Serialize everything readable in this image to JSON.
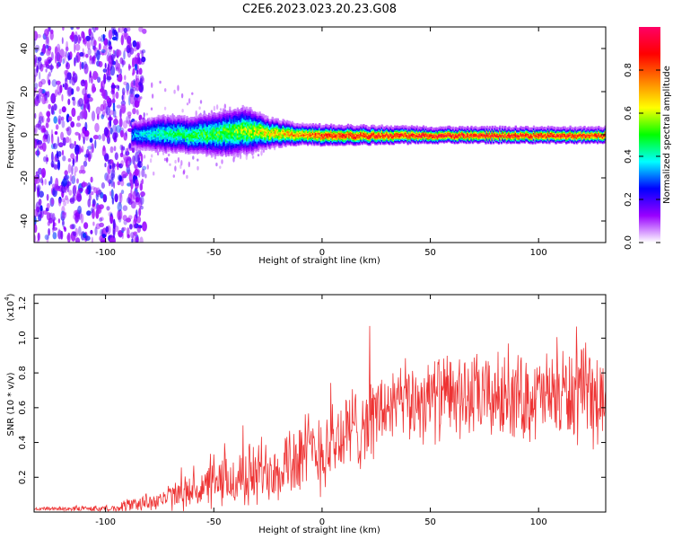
{
  "title": "C2E6.2023.023.20.23.G08",
  "chart_data": [
    {
      "type": "heatmap",
      "xlabel": "Height of straight line (km)",
      "ylabel": "Frequency (Hz)",
      "xlim": [
        -133,
        131
      ],
      "ylim": [
        -50,
        50
      ],
      "xticks": [
        -100,
        -50,
        0,
        50,
        100
      ],
      "yticks": [
        -40,
        -20,
        0,
        20,
        40
      ],
      "colorbar": {
        "label": "Normalized spectral amplitude",
        "range": [
          0,
          1
        ],
        "ticks": [
          "0.0",
          "0.2",
          "0.4",
          "0.6",
          "0.8"
        ],
        "colors": [
          "#ffffff",
          "#9900ff",
          "#0000ff",
          "#00ffff",
          "#00ff00",
          "#ffff00",
          "#ff8000",
          "#ff0000",
          "#ff0066"
        ]
      },
      "ridge": [
        {
          "x": -88,
          "f": 0.0,
          "width": 3,
          "amp": 0.35
        },
        {
          "x": -75,
          "f": 0.5,
          "width": 4,
          "amp": 0.45
        },
        {
          "x": -60,
          "f": 0.0,
          "width": 4,
          "amp": 0.5
        },
        {
          "x": -45,
          "f": 1.0,
          "width": 5,
          "amp": 0.55
        },
        {
          "x": -35,
          "f": 2.0,
          "width": 5,
          "amp": 0.6
        },
        {
          "x": -25,
          "f": 1.0,
          "width": 3,
          "amp": 0.7
        },
        {
          "x": -10,
          "f": 0.5,
          "width": 2,
          "amp": 0.8
        },
        {
          "x": 0,
          "f": 0.0,
          "width": 2,
          "amp": 0.9
        },
        {
          "x": 50,
          "f": 0.0,
          "width": 1.5,
          "amp": 0.95
        },
        {
          "x": 100,
          "f": 0.0,
          "width": 1.5,
          "amp": 0.95
        },
        {
          "x": 131,
          "f": 0.0,
          "width": 1.5,
          "amp": 0.9
        }
      ],
      "noise_region_x": [
        -133,
        -90
      ]
    },
    {
      "type": "line",
      "xlabel": "Height of straight line (km)",
      "ylabel": "SNR (10 * v/v)",
      "y_multiplier_label": "(x10",
      "y_multiplier_exp": "4",
      "y_multiplier_close": ")",
      "xlim": [
        -133,
        131
      ],
      "ylim": [
        0,
        1.25
      ],
      "xticks": [
        -100,
        -50,
        0,
        50,
        100
      ],
      "yticks": [
        "0.2",
        "0.4",
        "0.6",
        "0.8",
        "1.0",
        "1.2"
      ],
      "color": "#ee3333",
      "envelope": [
        {
          "x": -133,
          "base": 0.02,
          "amp": 0.01
        },
        {
          "x": -95,
          "base": 0.02,
          "amp": 0.02
        },
        {
          "x": -90,
          "base": 0.04,
          "amp": 0.04
        },
        {
          "x": -75,
          "base": 0.07,
          "amp": 0.06
        },
        {
          "x": -60,
          "base": 0.12,
          "amp": 0.1
        },
        {
          "x": -45,
          "base": 0.17,
          "amp": 0.15
        },
        {
          "x": -30,
          "base": 0.22,
          "amp": 0.2
        },
        {
          "x": -15,
          "base": 0.3,
          "amp": 0.22
        },
        {
          "x": 0,
          "base": 0.36,
          "amp": 0.25
        },
        {
          "x": 15,
          "base": 0.48,
          "amp": 0.25
        },
        {
          "x": 30,
          "base": 0.6,
          "amp": 0.22
        },
        {
          "x": 50,
          "base": 0.66,
          "amp": 0.24
        },
        {
          "x": 75,
          "base": 0.66,
          "amp": 0.24
        },
        {
          "x": 100,
          "base": 0.66,
          "amp": 0.24
        },
        {
          "x": 118,
          "base": 0.68,
          "amp": 0.28
        },
        {
          "x": 131,
          "base": 0.62,
          "amp": 0.25
        }
      ]
    }
  ]
}
